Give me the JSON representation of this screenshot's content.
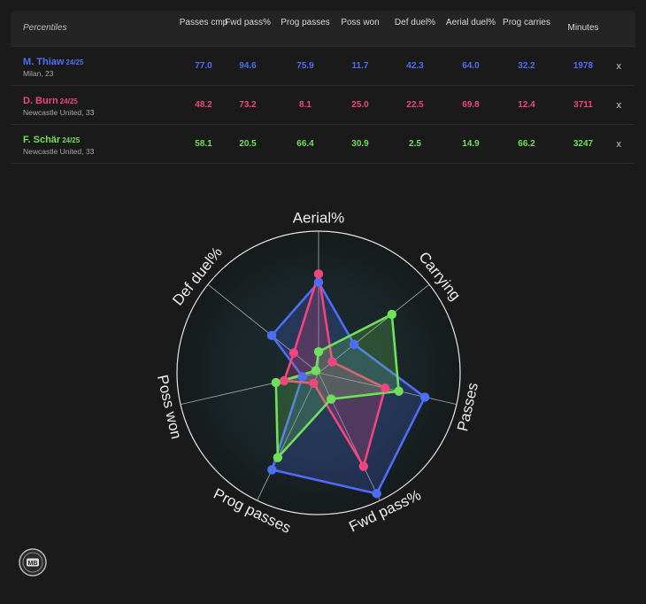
{
  "table": {
    "header_first": "Percentiles",
    "columns": [
      "Passes cmp",
      "Fwd pass%",
      "Prog passes",
      "Poss won",
      "Def duel%",
      "Aerial duel%",
      "Prog carries",
      "Minutes"
    ],
    "remove_label": "x",
    "rows": [
      {
        "name": "M. Thiaw",
        "season": "24/25",
        "team": "Milan, 23",
        "color": "#4f6ef7",
        "values": [
          "77.0",
          "94.6",
          "75.9",
          "11.7",
          "42.3",
          "64.0",
          "32.2",
          "1978"
        ]
      },
      {
        "name": "D. Burn",
        "season": "24/25",
        "team": "Newcastle United, 33",
        "color": "#f0457f",
        "values": [
          "48.2",
          "73.2",
          "8.1",
          "25.0",
          "22.5",
          "69.8",
          "12.4",
          "3711"
        ]
      },
      {
        "name": "F. Schär",
        "season": "24/25",
        "team": "Newcastle United, 33",
        "color": "#6fe05a",
        "values": [
          "58.1",
          "20.5",
          "66.4",
          "30.9",
          "2.5",
          "14.9",
          "66.2",
          "3247"
        ]
      }
    ]
  },
  "chart_data": {
    "type": "radar",
    "axes": [
      "Aerial%",
      "Carrying",
      "Passes",
      "Fwd pass%",
      "Prog passes",
      "Poss won",
      "Def duel%"
    ],
    "range": [
      0,
      100
    ],
    "series": [
      {
        "name": "M. Thiaw",
        "color": "#4f6ef7",
        "values": [
          64.0,
          32.2,
          77.0,
          94.6,
          75.9,
          11.7,
          42.3
        ]
      },
      {
        "name": "D. Burn",
        "color": "#f0457f",
        "values": [
          69.8,
          12.4,
          48.2,
          73.2,
          8.1,
          25.0,
          22.5
        ]
      },
      {
        "name": "F. Schär",
        "color": "#6fe05a",
        "values": [
          14.9,
          66.2,
          58.1,
          20.5,
          66.4,
          30.9,
          2.5
        ]
      }
    ]
  },
  "logo_text": "MB"
}
